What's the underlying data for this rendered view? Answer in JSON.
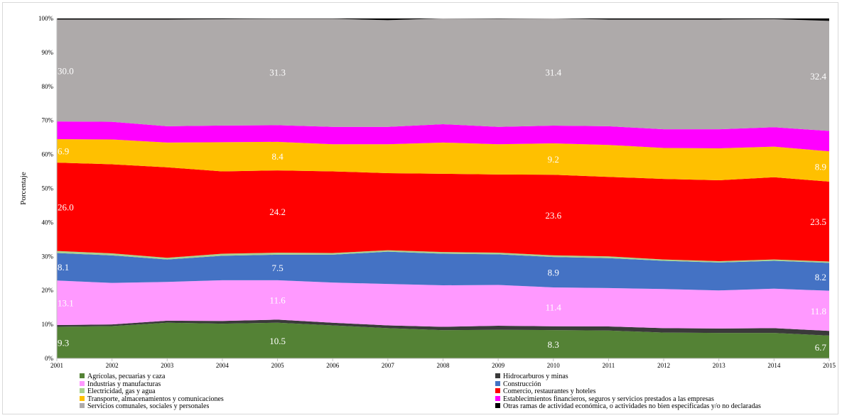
{
  "chart_data": {
    "type": "area",
    "stacked": "percent",
    "xlabel": "",
    "ylabel": "Porcentaje",
    "ylim": [
      0,
      100
    ],
    "yticks": [
      "0%",
      "10%",
      "20%",
      "30%",
      "40%",
      "50%",
      "60%",
      "70%",
      "80%",
      "90%",
      "100%"
    ],
    "x": [
      "2001",
      "2002",
      "2003",
      "2004",
      "2005",
      "2006",
      "2007",
      "2008",
      "2009",
      "2010",
      "2011",
      "2012",
      "2013",
      "2014",
      "2015"
    ],
    "grid": false,
    "legend_position": "bottom",
    "series": [
      {
        "name": "Agrícolas, pecuarias y caza",
        "color": "#548235",
        "values": [
          9.3,
          9.5,
          10.5,
          10.2,
          10.5,
          9.7,
          8.9,
          8.3,
          8.4,
          8.3,
          8.2,
          7.6,
          7.5,
          7.5,
          6.7
        ]
      },
      {
        "name": "Hidrocarburos y minas",
        "color": "#3a3a3a",
        "values": [
          0.5,
          0.5,
          0.6,
          0.8,
          0.9,
          0.8,
          0.8,
          1.0,
          1.2,
          1.1,
          1.2,
          1.3,
          1.3,
          1.4,
          1.4
        ]
      },
      {
        "name": "Industrias y manufacturas",
        "color": "#ff99ff",
        "values": [
          13.1,
          12.2,
          11.4,
          12.0,
          11.6,
          11.8,
          12.2,
          12.2,
          12.0,
          11.4,
          11.3,
          11.5,
          11.2,
          11.6,
          11.8
        ]
      },
      {
        "name": "Construcción",
        "color": "#4472c4",
        "values": [
          8.1,
          8.1,
          6.6,
          7.2,
          7.5,
          8.2,
          9.5,
          9.3,
          9.0,
          8.9,
          8.8,
          8.3,
          8.2,
          8.2,
          8.2
        ]
      },
      {
        "name": "Electricidad, gas y agua",
        "color": "#a9d18e",
        "values": [
          0.6,
          0.6,
          0.5,
          0.6,
          0.6,
          0.5,
          0.4,
          0.5,
          0.5,
          0.5,
          0.5,
          0.4,
          0.4,
          0.4,
          0.4
        ]
      },
      {
        "name": "Comercio, restaurantes y hoteles",
        "color": "#ff0000",
        "values": [
          26.0,
          26.2,
          26.6,
          24.2,
          24.2,
          24.0,
          22.7,
          23.0,
          23.0,
          23.6,
          23.4,
          23.7,
          23.8,
          24.2,
          23.5
        ]
      },
      {
        "name": "Transporte, almacenamientos y comunicaciones",
        "color": "#ffc000",
        "values": [
          6.9,
          7.3,
          7.3,
          8.6,
          8.4,
          8.0,
          8.5,
          9.2,
          8.9,
          9.2,
          9.4,
          9.1,
          9.4,
          9.0,
          8.9
        ]
      },
      {
        "name": "Establecimientos financieros, seguros y servicios prestados a las empresas",
        "color": "#ff00ff",
        "values": [
          5.2,
          5.2,
          4.8,
          4.9,
          4.9,
          5.1,
          5.1,
          5.4,
          5.1,
          5.2,
          5.5,
          5.5,
          5.6,
          5.7,
          6.0
        ]
      },
      {
        "name": "Servicios comunales, sociales y personales",
        "color": "#aeaaaa",
        "values": [
          30.0,
          30.1,
          31.4,
          31.3,
          31.3,
          31.8,
          31.4,
          31.1,
          31.8,
          31.4,
          31.4,
          32.3,
          32.3,
          31.8,
          32.4
        ]
      },
      {
        "name": "Otras ramas de actividad económica, o actividades no bien especificadas y/o no declaradas",
        "color": "#000000",
        "values": [
          0.3,
          0.3,
          0.3,
          0.2,
          0.1,
          0.1,
          0.5,
          0.0,
          0.1,
          0.0,
          0.3,
          0.3,
          0.3,
          0.2,
          0.7
        ]
      }
    ],
    "data_labels": [
      {
        "series": 0,
        "x_index": 0,
        "text": "9.3"
      },
      {
        "series": 0,
        "x_index": 4,
        "text": "10.5"
      },
      {
        "series": 0,
        "x_index": 9,
        "text": "8.3"
      },
      {
        "series": 0,
        "x_index": 14,
        "text": "6.7"
      },
      {
        "series": 2,
        "x_index": 0,
        "text": "13.1"
      },
      {
        "series": 2,
        "x_index": 4,
        "text": "11.6"
      },
      {
        "series": 2,
        "x_index": 9,
        "text": "11.4"
      },
      {
        "series": 2,
        "x_index": 14,
        "text": "11.8"
      },
      {
        "series": 3,
        "x_index": 0,
        "text": "8.1"
      },
      {
        "series": 3,
        "x_index": 4,
        "text": "7.5"
      },
      {
        "series": 3,
        "x_index": 9,
        "text": "8.9"
      },
      {
        "series": 3,
        "x_index": 14,
        "text": "8.2"
      },
      {
        "series": 5,
        "x_index": 0,
        "text": "26.0"
      },
      {
        "series": 5,
        "x_index": 4,
        "text": "24.2"
      },
      {
        "series": 5,
        "x_index": 9,
        "text": "23.6"
      },
      {
        "series": 5,
        "x_index": 14,
        "text": "23.5"
      },
      {
        "series": 6,
        "x_index": 0,
        "text": "6.9"
      },
      {
        "series": 6,
        "x_index": 4,
        "text": "8.4"
      },
      {
        "series": 6,
        "x_index": 9,
        "text": "9.2"
      },
      {
        "series": 6,
        "x_index": 14,
        "text": "8.9"
      },
      {
        "series": 8,
        "x_index": 0,
        "text": "30.0"
      },
      {
        "series": 8,
        "x_index": 4,
        "text": "31.3"
      },
      {
        "series": 8,
        "x_index": 9,
        "text": "31.4"
      },
      {
        "series": 8,
        "x_index": 14,
        "text": "32.4"
      }
    ]
  }
}
